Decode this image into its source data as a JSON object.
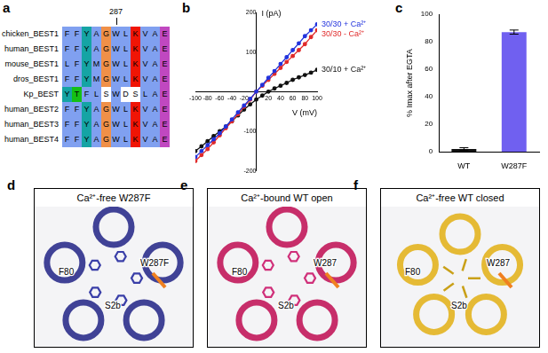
{
  "alignment": {
    "panel": "a",
    "marker": "287",
    "marker_column": 5,
    "rows": [
      {
        "name": "chicken_BEST1",
        "sequence": "FFYAGWLKVAE"
      },
      {
        "name": "human_BEST1",
        "sequence": "FFYAGWLKVAE"
      },
      {
        "name": "mouse_BEST1",
        "sequence": "LFYMGWLKVAE"
      },
      {
        "name": "dros_BEST1",
        "sequence": "FFYMGWLKVAE"
      },
      {
        "name": "Kp_BEST",
        "sequence": "YTFLSWDSLAE"
      },
      {
        "name": "human_BEST2",
        "sequence": "FFYAGWLKVAE"
      },
      {
        "name": "human_BEST3",
        "sequence": "FFYAGWLKVAE"
      },
      {
        "name": "human_BEST4",
        "sequence": "FFYAGWLKVAE"
      }
    ]
  },
  "chart_data": [
    {
      "panel": "b",
      "type": "line",
      "xlabel": "V (mV)",
      "ylabel": "I (pA)",
      "x": [
        -100,
        -90,
        -80,
        -70,
        -60,
        -50,
        -40,
        -30,
        -20,
        -10,
        0,
        10,
        20,
        30,
        40,
        50,
        60,
        70,
        80,
        90,
        100
      ],
      "series": [
        {
          "name": "30/30 + Ca²⁺",
          "color": "#2233dd",
          "marker": "circle",
          "values": [
            -165,
            -150,
            -135,
            -120,
            -105,
            -88,
            -70,
            -52,
            -35,
            -18,
            0,
            17,
            35,
            52,
            70,
            87,
            105,
            122,
            140,
            155,
            170
          ]
        },
        {
          "name": "30/30 - Ca²⁺",
          "color": "#e02a2a",
          "marker": "circle",
          "values": [
            -175,
            -160,
            -145,
            -128,
            -110,
            -92,
            -75,
            -57,
            -38,
            -20,
            0,
            15,
            30,
            45,
            60,
            75,
            90,
            105,
            120,
            138,
            155
          ]
        },
        {
          "name": "30/10 + Ca²⁺",
          "color": "#111111",
          "marker": "circle",
          "values": [
            -150,
            -138,
            -125,
            -112,
            -100,
            -88,
            -75,
            -60,
            -45,
            -32,
            -20,
            -10,
            0,
            8,
            15,
            22,
            30,
            36,
            42,
            48,
            55
          ]
        }
      ],
      "xlim": [
        -100,
        100
      ],
      "xticks": [
        -100,
        -80,
        -60,
        -40,
        -20,
        20,
        40,
        60,
        80,
        100
      ],
      "ylim": [
        -200,
        200
      ],
      "yticks": [
        -200,
        -100,
        100,
        200
      ],
      "grid": false
    },
    {
      "panel": "c",
      "type": "bar",
      "ylabel": "% Imax after EGTA",
      "categories": [
        "WT",
        "W287F"
      ],
      "values": [
        2,
        87
      ],
      "errors": [
        1,
        1.5
      ],
      "colors": [
        "#111111",
        "#7060f0"
      ],
      "ylim": [
        0,
        100
      ],
      "yticks": [
        0,
        20,
        40,
        60,
        80,
        100
      ],
      "grid": false
    }
  ],
  "structures": [
    {
      "panel": "d",
      "title": "Ca²⁺-free W287F",
      "labels": [
        "F80",
        "S2b",
        "W287F"
      ],
      "state": "open"
    },
    {
      "panel": "e",
      "title": "Ca²⁺-bound WT open",
      "labels": [
        "F80",
        "S2b",
        "W287"
      ],
      "state": "open"
    },
    {
      "panel": "f",
      "title": "Ca²⁺-free WT closed",
      "labels": [
        "F80",
        "S2b",
        "W287"
      ],
      "state": "closed"
    }
  ]
}
